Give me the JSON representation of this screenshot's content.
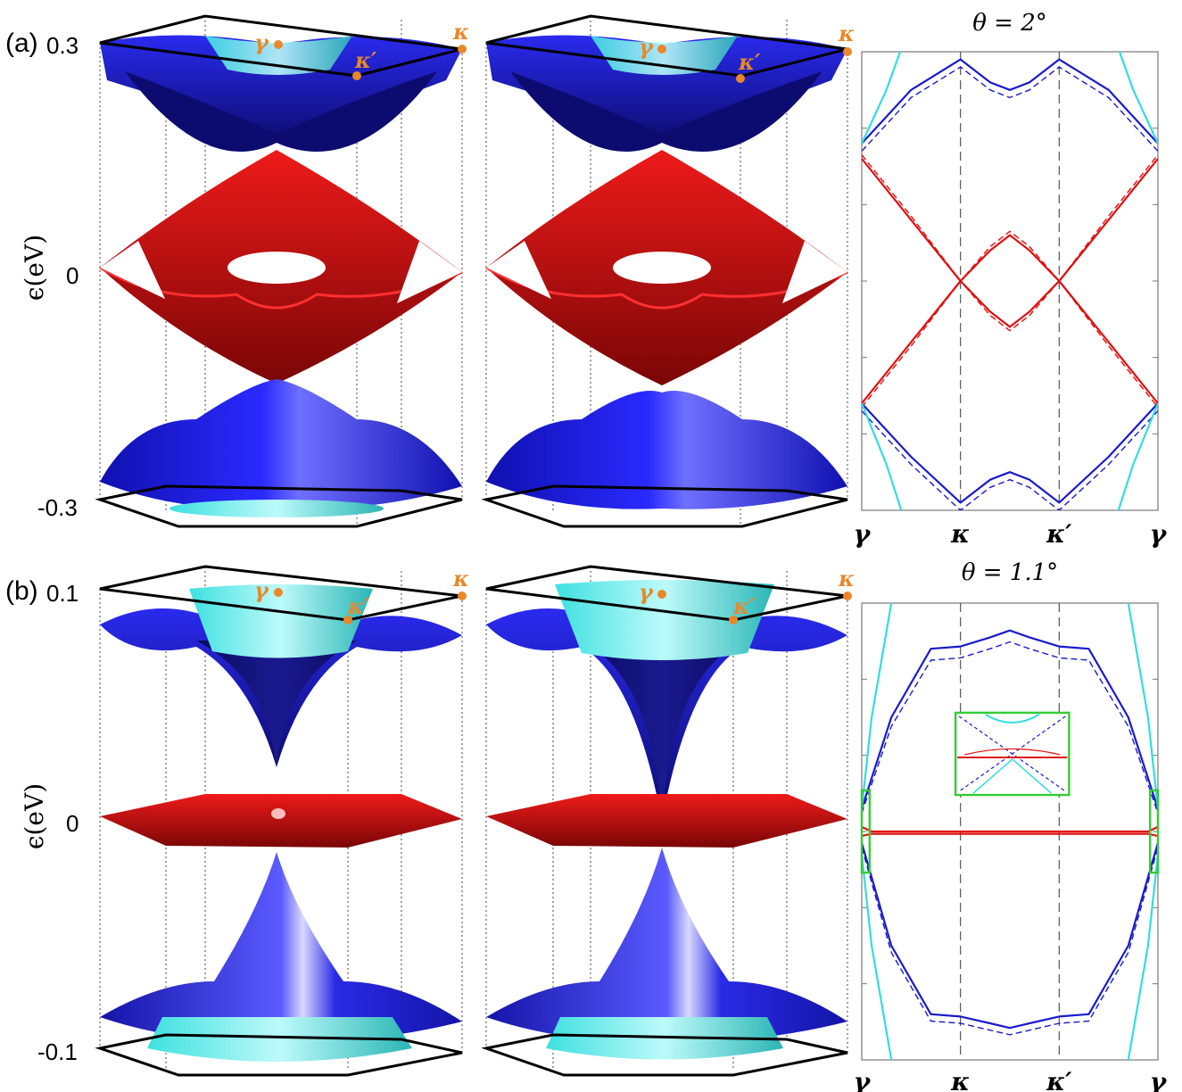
{
  "colors": {
    "band_blue": "#1a1acc",
    "band_blue_dark": "#0c0c66",
    "band_red": "#e01010",
    "band_red_dark": "#7a0606",
    "cyan": "#33dddd",
    "cyan_dark": "#1a8f8f",
    "marker_orange": "#e8882a",
    "frame_black": "#000000",
    "inset_green": "#33cc33"
  },
  "panel_a": {
    "label": "(a)",
    "axis_label": "ϵ(eV)",
    "ticks": {
      "top": "0.3",
      "mid": "0",
      "bottom": "-0.3"
    },
    "points": {
      "gamma": "γ",
      "kappa": "κ",
      "kappa_prime": "κ′"
    }
  },
  "panel_b": {
    "label": "(b)",
    "axis_label": "ϵ(eV)",
    "ticks": {
      "top": "0.1",
      "mid": "0",
      "bottom": "-0.1"
    },
    "points": {
      "gamma": "γ",
      "kappa": "κ",
      "kappa_prime": "κ′"
    }
  },
  "chart_data": [
    {
      "type": "line",
      "title": "θ = 2°",
      "xtick_labels": [
        "γ",
        "κ",
        "κ′",
        "γ"
      ],
      "x_positions": [
        0,
        1,
        2,
        3
      ],
      "ylim": [
        -0.3,
        0.3
      ],
      "y_minor_ticks": true,
      "series": [
        {
          "style": "solid",
          "color": "blue",
          "x": [
            0,
            0.5,
            1,
            1.3,
            1.5,
            1.7,
            2,
            2.5,
            3
          ],
          "y": [
            0.18,
            0.25,
            0.29,
            0.26,
            0.25,
            0.26,
            0.29,
            0.25,
            0.18
          ]
        },
        {
          "style": "dashed",
          "color": "blue",
          "x": [
            0,
            0.5,
            1,
            1.3,
            1.5,
            1.7,
            2,
            2.5,
            3
          ],
          "y": [
            0.17,
            0.24,
            0.28,
            0.25,
            0.24,
            0.25,
            0.28,
            0.24,
            0.17
          ]
        },
        {
          "style": "solid",
          "color": "red",
          "x": [
            0,
            0.5,
            1,
            1.3,
            1.5,
            1.7,
            2,
            2.5,
            3
          ],
          "y": [
            0.16,
            0.08,
            0.0,
            0.04,
            0.06,
            0.04,
            0.0,
            0.08,
            0.16
          ]
        },
        {
          "style": "dashed",
          "color": "red",
          "x": [
            0,
            0.5,
            1,
            1.3,
            1.5,
            1.7,
            2,
            2.5,
            3
          ],
          "y": [
            0.165,
            0.085,
            0.0,
            0.045,
            0.065,
            0.045,
            0.0,
            0.085,
            0.165
          ]
        },
        {
          "style": "solid",
          "color": "red",
          "x": [
            0,
            0.5,
            1,
            1.3,
            1.5,
            1.7,
            2,
            2.5,
            3
          ],
          "y": [
            -0.16,
            -0.08,
            0.0,
            -0.04,
            -0.06,
            -0.04,
            0.0,
            -0.08,
            -0.16
          ]
        },
        {
          "style": "dashed",
          "color": "red",
          "x": [
            0,
            0.5,
            1,
            1.3,
            1.5,
            1.7,
            2,
            2.5,
            3
          ],
          "y": [
            -0.165,
            -0.085,
            0.0,
            -0.045,
            -0.065,
            -0.045,
            0.0,
            -0.085,
            -0.165
          ]
        },
        {
          "style": "solid",
          "color": "blue",
          "x": [
            0,
            0.5,
            1,
            1.3,
            1.5,
            1.7,
            2,
            2.5,
            3
          ],
          "y": [
            -0.16,
            -0.23,
            -0.29,
            -0.26,
            -0.25,
            -0.26,
            -0.29,
            -0.23,
            -0.16
          ]
        },
        {
          "style": "dashed",
          "color": "blue",
          "x": [
            0,
            0.5,
            1,
            1.3,
            1.5,
            1.7,
            2,
            2.5,
            3
          ],
          "y": [
            -0.17,
            -0.24,
            -0.3,
            -0.27,
            -0.26,
            -0.27,
            -0.3,
            -0.24,
            -0.17
          ]
        },
        {
          "style": "solid",
          "color": "cyan",
          "x": [
            0,
            0.25,
            0.5
          ],
          "y": [
            0.18,
            0.25,
            0.34
          ]
        },
        {
          "style": "solid",
          "color": "cyan",
          "x": [
            2.5,
            2.75,
            3
          ],
          "y": [
            0.34,
            0.25,
            0.18
          ]
        },
        {
          "style": "solid",
          "color": "cyan",
          "x": [
            0,
            0.25,
            0.5
          ],
          "y": [
            -0.16,
            -0.24,
            -0.34
          ]
        },
        {
          "style": "solid",
          "color": "cyan",
          "x": [
            2.5,
            2.75,
            3
          ],
          "y": [
            -0.34,
            -0.24,
            -0.16
          ]
        }
      ]
    },
    {
      "type": "line",
      "title": "θ = 1.1°",
      "xtick_labels": [
        "γ",
        "κ",
        "κ′",
        "γ"
      ],
      "x_positions": [
        0,
        1,
        2,
        3
      ],
      "ylim": [
        -0.1,
        0.1
      ],
      "y_minor_ticks": true,
      "inset": true,
      "series": [
        {
          "style": "solid",
          "color": "blue",
          "x": [
            0,
            0.3,
            0.7,
            1,
            1.3,
            1.5,
            1.7,
            2,
            2.3,
            2.7,
            3
          ],
          "y": [
            0.01,
            0.05,
            0.08,
            0.081,
            0.085,
            0.088,
            0.085,
            0.081,
            0.08,
            0.05,
            0.01
          ]
        },
        {
          "style": "dashed",
          "color": "blue",
          "x": [
            0,
            0.3,
            0.7,
            1,
            1.3,
            1.5,
            1.7,
            2,
            2.3,
            2.7,
            3
          ],
          "y": [
            0.008,
            0.046,
            0.075,
            0.076,
            0.08,
            0.083,
            0.08,
            0.076,
            0.075,
            0.046,
            0.008
          ]
        },
        {
          "style": "solid",
          "color": "red",
          "x": [
            0,
            0.1,
            0.5,
            1,
            1.5,
            2,
            2.5,
            2.9,
            3
          ],
          "y": [
            0.002,
            0.0,
            0.0,
            0.0,
            0.0,
            0.0,
            0.0,
            0.0,
            0.002
          ]
        },
        {
          "style": "solid",
          "color": "red",
          "x": [
            0,
            0.1,
            0.5,
            1,
            1.5,
            2,
            2.5,
            2.9,
            3
          ],
          "y": [
            -0.002,
            -0.001,
            -0.001,
            -0.001,
            -0.001,
            -0.001,
            -0.001,
            -0.001,
            -0.002
          ]
        },
        {
          "style": "solid",
          "color": "blue",
          "x": [
            0,
            0.3,
            0.7,
            1,
            1.3,
            1.5,
            1.7,
            2,
            2.3,
            2.7,
            3
          ],
          "y": [
            -0.005,
            -0.05,
            -0.08,
            -0.081,
            -0.084,
            -0.086,
            -0.084,
            -0.081,
            -0.08,
            -0.05,
            -0.005
          ]
        },
        {
          "style": "dashed",
          "color": "blue",
          "x": [
            0,
            0.3,
            0.7,
            1,
            1.3,
            1.5,
            1.7,
            2,
            2.3,
            2.7,
            3
          ],
          "y": [
            -0.007,
            -0.053,
            -0.083,
            -0.084,
            -0.087,
            -0.089,
            -0.087,
            -0.084,
            -0.083,
            -0.053,
            -0.007
          ]
        },
        {
          "style": "solid",
          "color": "cyan",
          "x": [
            0,
            0.1,
            0.3
          ],
          "y": [
            0.01,
            0.05,
            0.1
          ]
        },
        {
          "style": "solid",
          "color": "cyan",
          "x": [
            2.7,
            2.9,
            3
          ],
          "y": [
            0.1,
            0.05,
            0.01
          ]
        },
        {
          "style": "solid",
          "color": "cyan",
          "x": [
            0,
            0.1,
            0.3
          ],
          "y": [
            -0.01,
            -0.05,
            -0.1
          ]
        },
        {
          "style": "solid",
          "color": "cyan",
          "x": [
            2.7,
            2.9,
            3
          ],
          "y": [
            -0.1,
            -0.05,
            -0.01
          ]
        }
      ]
    }
  ]
}
